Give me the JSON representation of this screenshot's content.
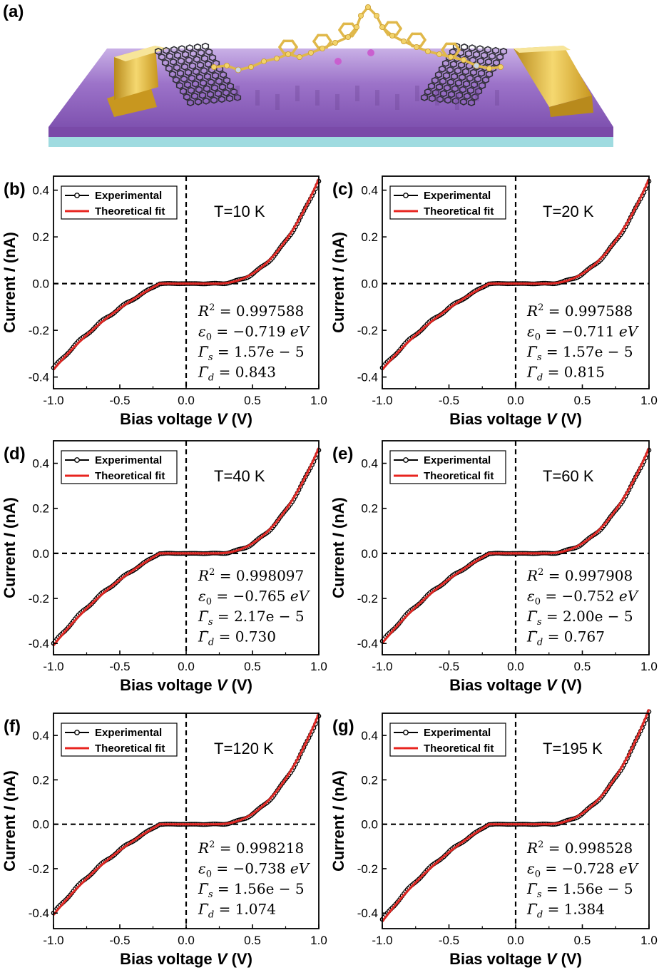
{
  "figure": {
    "panel_a_label": "(a)",
    "panel_a_description_icon": "molecular-junction-illustration"
  },
  "colors": {
    "experimental": "#000000",
    "fit": "#e8241f",
    "marker_fill": "#ffffff",
    "substrate_top": "#8a5fb8",
    "substrate_side": "#9fdbe0",
    "gold": "#e7c24a",
    "atom_yellow": "#f2d36b",
    "atom_pink": "#c95fcf",
    "graphene": "#2f2f36"
  },
  "chart_data": [
    {
      "type": "line",
      "panel": "(b)",
      "temperature": "T=10 K",
      "xlabel_prefix": "Bias voltage ",
      "xlabel_var": "V",
      "xlabel_suffix": " (V)",
      "ylabel_prefix": "Current ",
      "ylabel_var": "I",
      "ylabel_suffix": " (nA)",
      "xlim": [
        -1.0,
        1.0
      ],
      "ylim": [
        -0.45,
        0.46
      ],
      "xticks": [
        "-1.0",
        "-0.5",
        "0.0",
        "0.5",
        "1.0"
      ],
      "yticks": [
        "-0.4",
        "-0.2",
        "0.0",
        "0.2",
        "0.4"
      ],
      "legend": [
        "Experimental",
        "Theoretical fit"
      ],
      "fit_params": {
        "R2": "0.997588",
        "eps0": "−0.719",
        "gs": "1.57e − 5",
        "gd": "0.843"
      },
      "Imax": 0.45,
      "Imin": -0.37
    },
    {
      "type": "line",
      "panel": "(c)",
      "temperature": "T=20 K",
      "xlabel_prefix": "Bias voltage ",
      "xlabel_var": "V",
      "xlabel_suffix": " (V)",
      "ylabel_prefix": "Current ",
      "ylabel_var": "I",
      "ylabel_suffix": " (nA)",
      "xlim": [
        -1.0,
        1.0
      ],
      "ylim": [
        -0.45,
        0.46
      ],
      "xticks": [
        "-1.0",
        "-0.5",
        "0.0",
        "0.5",
        "1.0"
      ],
      "yticks": [
        "-0.4",
        "-0.2",
        "0.0",
        "0.2",
        "0.4"
      ],
      "legend": [
        "Experimental",
        "Theoretical fit"
      ],
      "fit_params": {
        "R2": "0.997588",
        "eps0": "−0.711",
        "gs": "1.57e − 5",
        "gd": "0.815"
      },
      "Imax": 0.45,
      "Imin": -0.37
    },
    {
      "type": "line",
      "panel": "(d)",
      "temperature": "T=40 K",
      "xlabel_prefix": "Bias voltage ",
      "xlabel_var": "V",
      "xlabel_suffix": " (V)",
      "ylabel_prefix": "Current ",
      "ylabel_var": "I",
      "ylabel_suffix": " (nA)",
      "xlim": [
        -1.0,
        1.0
      ],
      "ylim": [
        -0.45,
        0.5
      ],
      "xticks": [
        "-1.0",
        "-0.5",
        "0.0",
        "0.5",
        "1.0"
      ],
      "yticks": [
        "-0.4",
        "-0.2",
        "0.0",
        "0.2",
        "0.4"
      ],
      "legend": [
        "Experimental",
        "Theoretical fit"
      ],
      "fit_params": {
        "R2": "0.998097",
        "eps0": "−0.765",
        "gs": "2.17e − 5",
        "gd": "0.730"
      },
      "Imax": 0.47,
      "Imin": -0.41
    },
    {
      "type": "line",
      "panel": "(e)",
      "temperature": "T=60 K",
      "xlabel_prefix": "Bias voltage ",
      "xlabel_var": "V",
      "xlabel_suffix": " (V)",
      "ylabel_prefix": "Current ",
      "ylabel_var": "I",
      "ylabel_suffix": " (nA)",
      "xlim": [
        -1.0,
        1.0
      ],
      "ylim": [
        -0.45,
        0.5
      ],
      "xticks": [
        "-1.0",
        "-0.5",
        "0.0",
        "0.5",
        "1.0"
      ],
      "yticks": [
        "-0.4",
        "-0.2",
        "0.0",
        "0.2",
        "0.4"
      ],
      "legend": [
        "Experimental",
        "Theoretical fit"
      ],
      "fit_params": {
        "R2": "0.997908",
        "eps0": "−0.752",
        "gs": "2.00e − 5",
        "gd": "0.767"
      },
      "Imax": 0.47,
      "Imin": -0.4
    },
    {
      "type": "line",
      "panel": "(f)",
      "temperature": "T=120 K",
      "xlabel_prefix": "Bias voltage ",
      "xlabel_var": "V",
      "xlabel_suffix": " (V)",
      "ylabel_prefix": "Current ",
      "ylabel_var": "I",
      "ylabel_suffix": " (nA)",
      "xlim": [
        -1.0,
        1.0
      ],
      "ylim": [
        -0.47,
        0.5
      ],
      "xticks": [
        "-1.0",
        "-0.5",
        "0.0",
        "0.5",
        "1.0"
      ],
      "yticks": [
        "-0.4",
        "-0.2",
        "0.0",
        "0.2",
        "0.4"
      ],
      "legend": [
        "Experimental",
        "Theoretical fit"
      ],
      "fit_params": {
        "R2": "0.998218",
        "eps0": "−0.738",
        "gs": "1.56e − 5",
        "gd": "1.074"
      },
      "Imax": 0.5,
      "Imin": -0.41
    },
    {
      "type": "line",
      "panel": "(g)",
      "temperature": "T=195 K",
      "xlabel_prefix": "Bias voltage ",
      "xlabel_var": "V",
      "xlabel_suffix": " (V)",
      "ylabel_prefix": "Current ",
      "ylabel_var": "I",
      "ylabel_suffix": " (nA)",
      "xlim": [
        -1.0,
        1.0
      ],
      "ylim": [
        -0.47,
        0.5
      ],
      "xticks": [
        "-1.0",
        "-0.5",
        "0.0",
        "0.5",
        "1.0"
      ],
      "yticks": [
        "-0.4",
        "-0.2",
        "0.0",
        "0.2",
        "0.4"
      ],
      "legend": [
        "Experimental",
        "Theoretical fit"
      ],
      "fit_params": {
        "R2": "0.998528",
        "eps0": "−0.728",
        "gs": "1.56e − 5",
        "gd": "1.384"
      },
      "Imax": 0.52,
      "Imin": -0.44
    }
  ]
}
